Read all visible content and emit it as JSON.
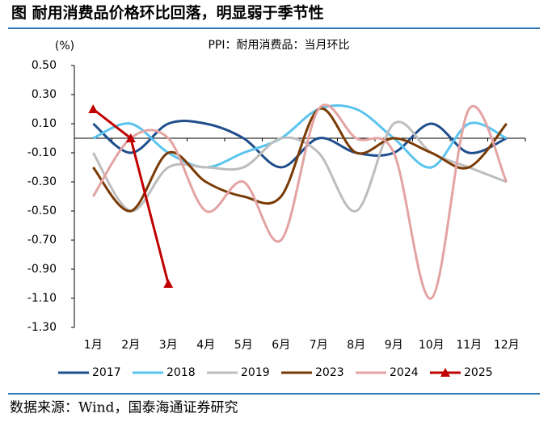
{
  "title": "图  耐用消费品价格环比回落，明显弱于季节性",
  "source": "数据来源：Wind，国泰海通证券研究",
  "chart_data": {
    "type": "line",
    "title": "PPI：耐用消费品：当月环比",
    "y_label": "(%)",
    "categories": [
      "1月",
      "2月",
      "3月",
      "4月",
      "5月",
      "6月",
      "7月",
      "8月",
      "9月",
      "10月",
      "11月",
      "12月"
    ],
    "series": [
      {
        "name": "2017",
        "color": "#1f4e8c",
        "values": [
          0.1,
          -0.1,
          0.1,
          0.1,
          0.0,
          -0.2,
          0.0,
          -0.1,
          -0.1,
          0.1,
          -0.1,
          0.0
        ]
      },
      {
        "name": "2018",
        "color": "#5bc4ee",
        "values": [
          0.0,
          0.1,
          -0.1,
          -0.2,
          -0.1,
          0.0,
          0.2,
          0.2,
          0.0,
          -0.2,
          0.1,
          0.0
        ]
      },
      {
        "name": "2019",
        "color": "#bdbdbd",
        "values": [
          -0.1,
          -0.5,
          -0.2,
          -0.2,
          -0.2,
          0.0,
          -0.1,
          -0.5,
          0.1,
          -0.1,
          -0.2,
          -0.3
        ]
      },
      {
        "name": "2023",
        "color": "#7a3b06",
        "values": [
          -0.2,
          -0.5,
          -0.1,
          -0.3,
          -0.4,
          -0.4,
          0.2,
          -0.1,
          0.0,
          -0.1,
          -0.2,
          0.1
        ]
      },
      {
        "name": "2024",
        "color": "#e3a3a3",
        "values": [
          -0.4,
          0.0,
          0.0,
          -0.5,
          -0.3,
          -0.7,
          0.2,
          0.0,
          -0.1,
          -1.1,
          0.2,
          -0.3
        ]
      },
      {
        "name": "2025",
        "color": "#c00000",
        "marker": "triangle",
        "smooth": false,
        "values": [
          0.2,
          0.0,
          -1.0,
          null,
          null,
          null,
          null,
          null,
          null,
          null,
          null,
          null
        ]
      }
    ],
    "ylim": [
      -1.3,
      0.5
    ],
    "yticks": [
      {
        "value": 0.5,
        "label": "0.50"
      },
      {
        "value": 0.3,
        "label": "0.30"
      },
      {
        "value": 0.1,
        "label": "0.10"
      },
      {
        "value": -0.1,
        "label": "-0.10"
      },
      {
        "value": -0.3,
        "label": "-0.30"
      },
      {
        "value": -0.5,
        "label": "-0.50"
      },
      {
        "value": -0.7,
        "label": "-0.70"
      },
      {
        "value": -0.9,
        "label": "-0.90"
      },
      {
        "value": -1.1,
        "label": "-1.10"
      },
      {
        "value": -1.3,
        "label": "-1.30"
      }
    ],
    "smooth": true,
    "legend": "bottom"
  }
}
